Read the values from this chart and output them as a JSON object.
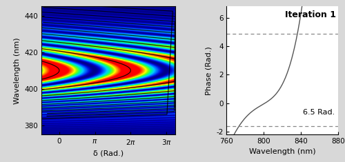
{
  "left_panel": {
    "xlim_start": -1.5707963,
    "xlim_end": 10.2,
    "ylim": [
      375,
      445
    ],
    "xlabel": "δ (Rad.)",
    "ylabel": "Wavelength (nm)",
    "xticks": [
      0,
      3.14159,
      6.28318,
      9.42478
    ],
    "xtick_labels": [
      "0",
      "π",
      "2π",
      "3π"
    ],
    "yticks": [
      380,
      400,
      420,
      440
    ]
  },
  "right_panel": {
    "xlim": [
      760,
      880
    ],
    "ylim": [
      -2.2,
      6.8
    ],
    "xlabel": "Wavelength (nm)",
    "ylabel": "Phase (Rad.)",
    "xticks": [
      760,
      800,
      840,
      880
    ],
    "yticks": [
      -2,
      0,
      2,
      4,
      6
    ],
    "dashed_line_upper": 4.9,
    "dashed_line_lower": -1.6,
    "label_iteration": "Iteration 1",
    "label_rad": "6.5 Rad."
  },
  "fig_facecolor": "#d8d8d8"
}
